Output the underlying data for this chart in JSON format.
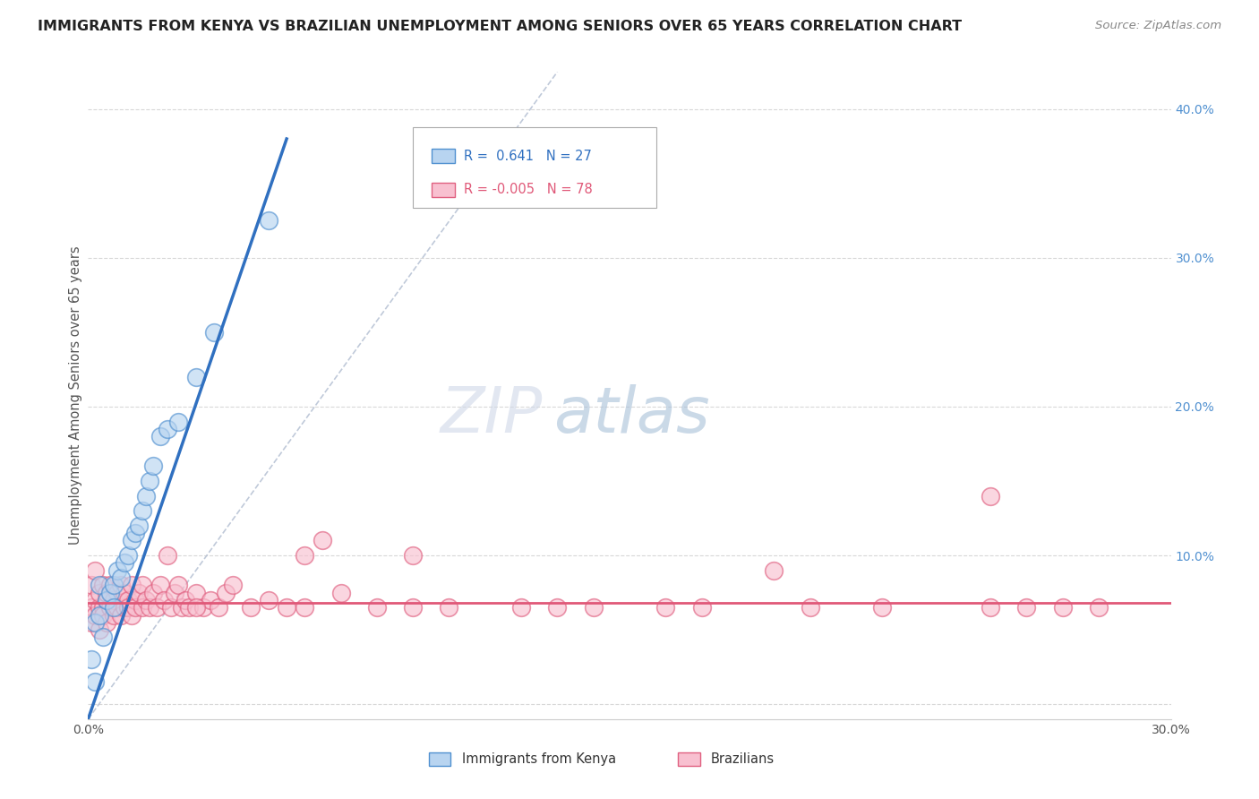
{
  "title": "IMMIGRANTS FROM KENYA VS BRAZILIAN UNEMPLOYMENT AMONG SENIORS OVER 65 YEARS CORRELATION CHART",
  "source": "Source: ZipAtlas.com",
  "xlabel_kenya": "Immigrants from Kenya",
  "xlabel_brazil": "Brazilians",
  "ylabel": "Unemployment Among Seniors over 65 years",
  "xlim": [
    0.0,
    0.3
  ],
  "ylim": [
    -0.01,
    0.425
  ],
  "x_ticks": [
    0.0,
    0.05,
    0.1,
    0.15,
    0.2,
    0.25,
    0.3
  ],
  "x_tick_labels": [
    "0.0%",
    "",
    "",
    "",
    "",
    "",
    "30.0%"
  ],
  "y_ticks": [
    0.0,
    0.1,
    0.2,
    0.3,
    0.4
  ],
  "y_tick_labels": [
    "",
    "10.0%",
    "20.0%",
    "30.0%",
    "40.0%"
  ],
  "r_kenya": 0.641,
  "n_kenya": 27,
  "r_brazil": -0.005,
  "n_brazil": 78,
  "color_kenya": "#b8d4f0",
  "color_kenya_edge": "#5090d0",
  "color_kenya_line": "#3070c0",
  "color_brazil": "#f8c0d0",
  "color_brazil_edge": "#e06080",
  "color_brazil_line": "#e05878",
  "color_diag": "#b0bcd0",
  "background_color": "#ffffff",
  "grid_color": "#d8d8d8",
  "kenya_x": [
    0.001,
    0.002,
    0.002,
    0.003,
    0.003,
    0.004,
    0.005,
    0.006,
    0.007,
    0.007,
    0.008,
    0.009,
    0.01,
    0.011,
    0.012,
    0.013,
    0.014,
    0.015,
    0.016,
    0.017,
    0.018,
    0.02,
    0.022,
    0.025,
    0.03,
    0.035,
    0.05
  ],
  "kenya_y": [
    0.03,
    0.015,
    0.055,
    0.06,
    0.08,
    0.045,
    0.07,
    0.075,
    0.065,
    0.08,
    0.09,
    0.085,
    0.095,
    0.1,
    0.11,
    0.115,
    0.12,
    0.13,
    0.14,
    0.15,
    0.16,
    0.18,
    0.185,
    0.19,
    0.22,
    0.25,
    0.325
  ],
  "brazil_x": [
    0.001,
    0.001,
    0.001,
    0.002,
    0.002,
    0.002,
    0.003,
    0.003,
    0.003,
    0.004,
    0.004,
    0.004,
    0.005,
    0.005,
    0.005,
    0.006,
    0.006,
    0.007,
    0.007,
    0.008,
    0.008,
    0.009,
    0.009,
    0.01,
    0.01,
    0.011,
    0.011,
    0.012,
    0.012,
    0.013,
    0.013,
    0.014,
    0.015,
    0.015,
    0.016,
    0.017,
    0.018,
    0.019,
    0.02,
    0.021,
    0.022,
    0.023,
    0.024,
    0.025,
    0.026,
    0.027,
    0.028,
    0.03,
    0.032,
    0.034,
    0.036,
    0.038,
    0.04,
    0.045,
    0.05,
    0.055,
    0.06,
    0.065,
    0.07,
    0.08,
    0.09,
    0.1,
    0.12,
    0.14,
    0.16,
    0.19,
    0.22,
    0.25,
    0.26,
    0.27,
    0.28,
    0.25,
    0.2,
    0.17,
    0.13,
    0.09,
    0.06,
    0.03
  ],
  "brazil_y": [
    0.065,
    0.08,
    0.055,
    0.07,
    0.06,
    0.09,
    0.065,
    0.075,
    0.05,
    0.065,
    0.08,
    0.06,
    0.07,
    0.075,
    0.055,
    0.065,
    0.08,
    0.06,
    0.07,
    0.065,
    0.075,
    0.08,
    0.06,
    0.065,
    0.075,
    0.07,
    0.065,
    0.08,
    0.06,
    0.07,
    0.065,
    0.075,
    0.065,
    0.08,
    0.07,
    0.065,
    0.075,
    0.065,
    0.08,
    0.07,
    0.1,
    0.065,
    0.075,
    0.08,
    0.065,
    0.07,
    0.065,
    0.075,
    0.065,
    0.07,
    0.065,
    0.075,
    0.08,
    0.065,
    0.07,
    0.065,
    0.1,
    0.11,
    0.075,
    0.065,
    0.065,
    0.065,
    0.065,
    0.065,
    0.065,
    0.09,
    0.065,
    0.14,
    0.065,
    0.065,
    0.065,
    0.065,
    0.065,
    0.065,
    0.065,
    0.1,
    0.065,
    0.065
  ],
  "kenya_trend_x": [
    0.0,
    0.055
  ],
  "kenya_trend_y": [
    -0.01,
    0.38
  ],
  "brazil_trend_y_const": 0.068,
  "watermark_zip": "ZIP",
  "watermark_atlas": "atlas",
  "legend_r_kenya": "R =  0.641",
  "legend_n_kenya": "N = 27",
  "legend_r_brazil": "R = -0.005",
  "legend_n_brazil": "N = 78"
}
